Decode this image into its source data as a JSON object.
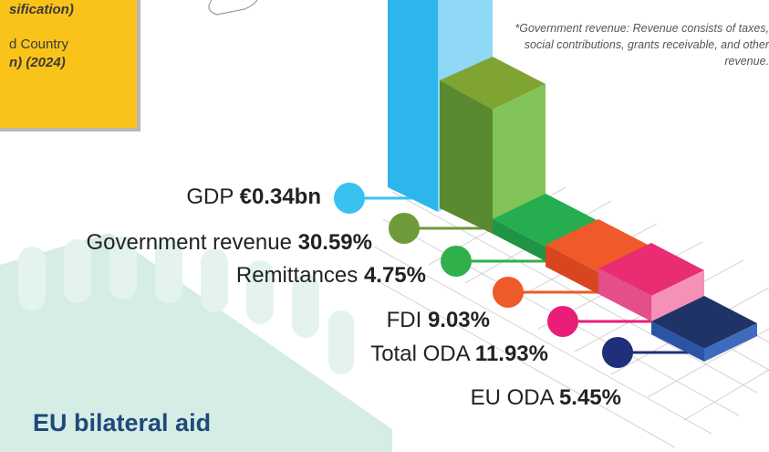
{
  "info_box": {
    "line1": "sification)",
    "line2": "d Country",
    "line3": "n) (2024)"
  },
  "note": {
    "text": "*Government revenue: Revenue consists of taxes, social contributions, grants receivable, and other revenue."
  },
  "indicators": [
    {
      "name": "GDP",
      "value": "€0.34bn",
      "color": "#39c2f0"
    },
    {
      "name": "Government revenue",
      "value": "30.59%",
      "color": "#6f9a3a"
    },
    {
      "name": "Remittances",
      "value": "4.75%",
      "color": "#2fb04a"
    },
    {
      "name": "FDI",
      "value": "9.03%",
      "color": "#ef5a2a"
    },
    {
      "name": "Total ODA",
      "value": "11.93%",
      "color": "#e91e78"
    },
    {
      "name": "EU ODA",
      "value": "5.45%",
      "color": "#1f2f7a"
    }
  ],
  "section": {
    "title": "EU bilateral aid"
  }
}
